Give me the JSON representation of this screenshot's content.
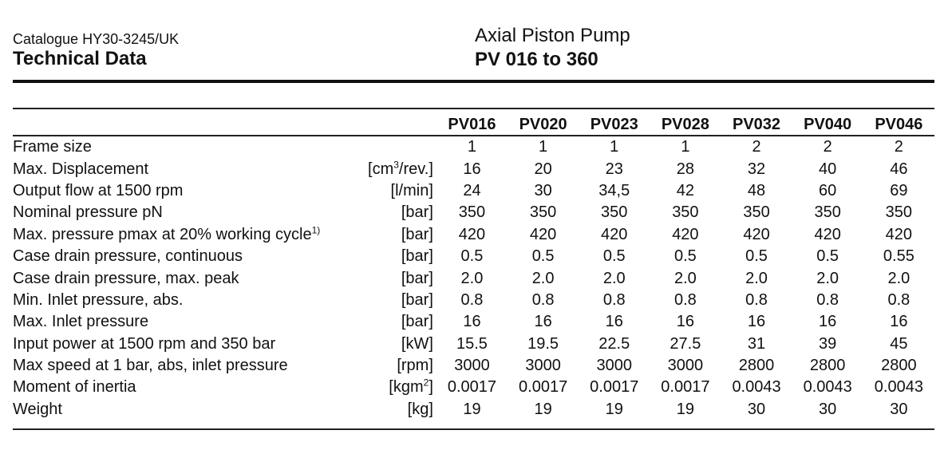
{
  "header": {
    "catalogue": "Catalogue HY30-3245/UK",
    "section_title": "Technical Data",
    "product_name": "Axial Piston Pump",
    "product_range": "PV 016 to 360"
  },
  "table": {
    "columns": [
      "PV016",
      "PV020",
      "PV023",
      "PV028",
      "PV032",
      "PV040",
      "PV046"
    ],
    "rows": [
      {
        "label": "Frame size",
        "unit": "",
        "values": [
          "1",
          "1",
          "1",
          "1",
          "2",
          "2",
          "2"
        ]
      },
      {
        "label": "Max. Displacement",
        "unit_pre": "[cm",
        "unit_sup": "3",
        "unit_post": "/rev.]",
        "values": [
          "16",
          "20",
          "23",
          "28",
          "32",
          "40",
          "46"
        ]
      },
      {
        "label": "Output flow at 1500 rpm",
        "unit": "[l/min]",
        "values": [
          "24",
          "30",
          "34,5",
          "42",
          "48",
          "60",
          "69"
        ]
      },
      {
        "label": "Nominal pressure pN",
        "unit": "[bar]",
        "values": [
          "350",
          "350",
          "350",
          "350",
          "350",
          "350",
          "350"
        ]
      },
      {
        "label": "Max. pressure pmax at 20% working cycle",
        "label_sup": "1)",
        "unit": "[bar]",
        "values": [
          "420",
          "420",
          "420",
          "420",
          "420",
          "420",
          "420"
        ]
      },
      {
        "label": "Case drain pressure, continuous",
        "unit": "[bar]",
        "values": [
          "0.5",
          "0.5",
          "0.5",
          "0.5",
          "0.5",
          "0.5",
          "0.55"
        ]
      },
      {
        "label": "Case drain pressure, max. peak",
        "unit": "[bar]",
        "values": [
          "2.0",
          "2.0",
          "2.0",
          "2.0",
          "2.0",
          "2.0",
          "2.0"
        ]
      },
      {
        "label": "Min. Inlet pressure, abs.",
        "unit": "[bar]",
        "values": [
          "0.8",
          "0.8",
          "0.8",
          "0.8",
          "0.8",
          "0.8",
          "0.8"
        ]
      },
      {
        "label": "Max. Inlet pressure",
        "unit": "[bar]",
        "values": [
          "16",
          "16",
          "16",
          "16",
          "16",
          "16",
          "16"
        ]
      },
      {
        "label": "Input power at 1500 rpm and 350 bar",
        "unit": "[kW]",
        "values": [
          "15.5",
          "19.5",
          "22.5",
          "27.5",
          "31",
          "39",
          "45"
        ]
      },
      {
        "label": "Max speed at 1 bar, abs, inlet pressure",
        "unit": "[rpm]",
        "values": [
          "3000",
          "3000",
          "3000",
          "3000",
          "2800",
          "2800",
          "2800"
        ]
      },
      {
        "label": "Moment of inertia",
        "unit_pre": "[kgm",
        "unit_sup": "2",
        "unit_post": "]",
        "values": [
          "0.0017",
          "0.0017",
          "0.0017",
          "0.0017",
          "0.0043",
          "0.0043",
          "0.0043"
        ]
      },
      {
        "label": "Weight",
        "unit": "[kg]",
        "values": [
          "19",
          "19",
          "19",
          "19",
          "30",
          "30",
          "30"
        ]
      }
    ]
  }
}
